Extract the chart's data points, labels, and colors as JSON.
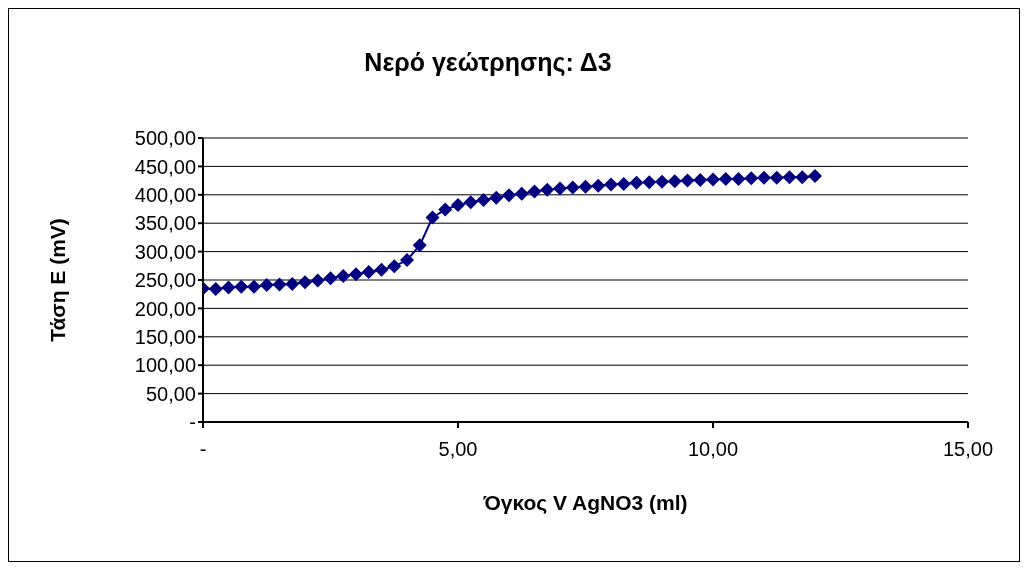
{
  "chart_data": {
    "type": "line",
    "title": "Νερό γεώτρησης: Δ3",
    "xlabel": "Όγκος V AgNO3 (ml)",
    "ylabel": "Τάση E (mV)",
    "x": [
      0,
      0.25,
      0.5,
      0.75,
      1,
      1.25,
      1.5,
      1.75,
      2,
      2.25,
      2.5,
      2.75,
      3,
      3.25,
      3.5,
      3.75,
      4,
      4.25,
      4.5,
      4.75,
      5,
      5.25,
      5.5,
      5.75,
      6,
      6.25,
      6.5,
      6.75,
      7,
      7.25,
      7.5,
      7.75,
      8,
      8.25,
      8.5,
      8.75,
      9,
      9.25,
      9.5,
      9.75,
      10,
      10.25,
      10.5,
      10.75,
      11,
      11.25,
      11.5,
      11.75,
      12
    ],
    "series": [
      {
        "color": "#000080",
        "values": [
          235,
          234,
          237,
          238,
          238,
          241,
          242,
          243,
          246,
          249,
          253,
          257,
          260,
          264,
          268,
          274,
          285,
          311,
          360,
          374,
          382,
          387,
          391,
          395,
          399,
          402,
          406,
          409,
          411,
          413,
          414,
          416,
          418,
          419,
          421,
          422,
          423,
          424,
          425,
          426,
          427,
          428,
          428,
          429,
          430,
          430,
          431,
          431,
          433
        ]
      }
    ],
    "xlim": [
      0,
      15
    ],
    "xticks": [
      {
        "value": 0,
        "label": "-"
      },
      {
        "value": 5,
        "label": "5,00"
      },
      {
        "value": 10,
        "label": "10,00"
      },
      {
        "value": 15,
        "label": "15,00"
      }
    ],
    "ylim": [
      0,
      500
    ],
    "yticks": [
      {
        "value": 0,
        "label": "-"
      },
      {
        "value": 50,
        "label": "50,00"
      },
      {
        "value": 100,
        "label": "100,00"
      },
      {
        "value": 150,
        "label": "150,00"
      },
      {
        "value": 200,
        "label": "200,00"
      },
      {
        "value": 250,
        "label": "250,00"
      },
      {
        "value": 300,
        "label": "300,00"
      },
      {
        "value": 350,
        "label": "350,00"
      },
      {
        "value": 400,
        "label": "400,00"
      },
      {
        "value": 450,
        "label": "450,00"
      },
      {
        "value": 500,
        "label": "500,00"
      }
    ],
    "grid": "y",
    "legend": false,
    "marker": "diamond",
    "line_style": "solid"
  }
}
